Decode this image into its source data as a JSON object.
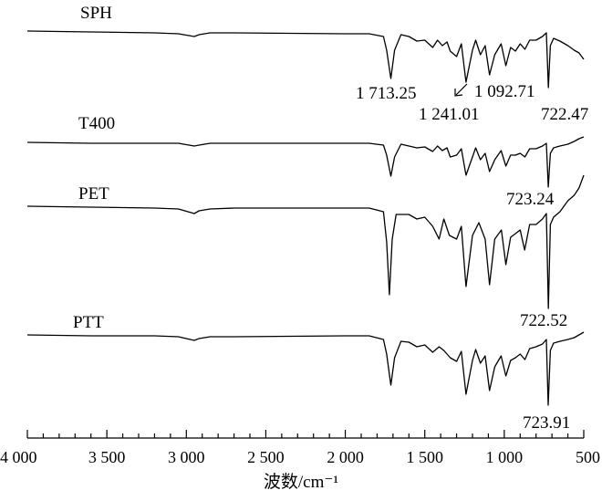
{
  "chart_data": {
    "type": "line",
    "xlabel": "波数/cm⁻¹",
    "xlim": [
      4000,
      500
    ],
    "x_reversed": true,
    "ticks": [
      {
        "value": 4000,
        "label": "4 000"
      },
      {
        "value": 3500,
        "label": "3 500"
      },
      {
        "value": 3000,
        "label": "3 000"
      },
      {
        "value": 2500,
        "label": "2 500"
      },
      {
        "value": 2000,
        "label": "2 000"
      },
      {
        "value": 1500,
        "label": "1 500"
      },
      {
        "value": 1000,
        "label": "1 000"
      },
      {
        "value": 500,
        "label": "500"
      }
    ],
    "series": [
      {
        "name": "SPH",
        "points": [
          [
            4000,
            34
          ],
          [
            3600,
            35
          ],
          [
            3200,
            36
          ],
          [
            3050,
            37
          ],
          [
            2950,
            40
          ],
          [
            2920,
            38
          ],
          [
            2850,
            36
          ],
          [
            2700,
            36
          ],
          [
            2000,
            37
          ],
          [
            1850,
            37
          ],
          [
            1760,
            40
          ],
          [
            1740,
            55
          ],
          [
            1713.25,
            86
          ],
          [
            1690,
            55
          ],
          [
            1650,
            38
          ],
          [
            1600,
            40
          ],
          [
            1550,
            45
          ],
          [
            1500,
            44
          ],
          [
            1450,
            52
          ],
          [
            1420,
            44
          ],
          [
            1390,
            50
          ],
          [
            1360,
            46
          ],
          [
            1340,
            56
          ],
          [
            1300,
            62
          ],
          [
            1270,
            48
          ],
          [
            1241.01,
            90
          ],
          [
            1200,
            55
          ],
          [
            1180,
            44
          ],
          [
            1150,
            60
          ],
          [
            1120,
            50
          ],
          [
            1092.71,
            82
          ],
          [
            1060,
            60
          ],
          [
            1020,
            48
          ],
          [
            990,
            72
          ],
          [
            960,
            52
          ],
          [
            930,
            56
          ],
          [
            900,
            48
          ],
          [
            870,
            54
          ],
          [
            840,
            44
          ],
          [
            800,
            44
          ],
          [
            760,
            40
          ],
          [
            735,
            36
          ],
          [
            722.47,
            96
          ],
          [
            710,
            50
          ],
          [
            690,
            42
          ],
          [
            650,
            45
          ],
          [
            600,
            50
          ],
          [
            560,
            55
          ],
          [
            530,
            58
          ],
          [
            500,
            65
          ]
        ]
      },
      {
        "name": "T400",
        "points": [
          [
            4000,
            156
          ],
          [
            3600,
            157
          ],
          [
            3200,
            157
          ],
          [
            3050,
            157
          ],
          [
            2950,
            160
          ],
          [
            2920,
            159
          ],
          [
            2850,
            157
          ],
          [
            2700,
            157
          ],
          [
            2000,
            157
          ],
          [
            1850,
            157
          ],
          [
            1760,
            159
          ],
          [
            1740,
            170
          ],
          [
            1713.25,
            193
          ],
          [
            1690,
            172
          ],
          [
            1650,
            158
          ],
          [
            1600,
            160
          ],
          [
            1550,
            162
          ],
          [
            1500,
            161
          ],
          [
            1450,
            166
          ],
          [
            1420,
            160
          ],
          [
            1390,
            165
          ],
          [
            1360,
            162
          ],
          [
            1340,
            172
          ],
          [
            1300,
            170
          ],
          [
            1270,
            163
          ],
          [
            1241.01,
            192
          ],
          [
            1200,
            172
          ],
          [
            1180,
            162
          ],
          [
            1150,
            175
          ],
          [
            1120,
            168
          ],
          [
            1092.71,
            188
          ],
          [
            1060,
            175
          ],
          [
            1020,
            165
          ],
          [
            990,
            182
          ],
          [
            960,
            170
          ],
          [
            930,
            170
          ],
          [
            900,
            168
          ],
          [
            870,
            172
          ],
          [
            840,
            163
          ],
          [
            800,
            163
          ],
          [
            760,
            160
          ],
          [
            735,
            157
          ],
          [
            723.24,
            205
          ],
          [
            710,
            168
          ],
          [
            690,
            162
          ],
          [
            650,
            160
          ],
          [
            600,
            158
          ],
          [
            560,
            155
          ],
          [
            530,
            152
          ],
          [
            500,
            150
          ]
        ]
      },
      {
        "name": "PET",
        "points": [
          [
            4000,
            226
          ],
          [
            3600,
            227
          ],
          [
            3200,
            228
          ],
          [
            3050,
            229
          ],
          [
            2950,
            234
          ],
          [
            2920,
            231
          ],
          [
            2850,
            229
          ],
          [
            2700,
            228
          ],
          [
            2000,
            228
          ],
          [
            1850,
            228
          ],
          [
            1760,
            232
          ],
          [
            1740,
            265
          ],
          [
            1722.5,
            323
          ],
          [
            1705,
            262
          ],
          [
            1680,
            235
          ],
          [
            1600,
            235
          ],
          [
            1550,
            240
          ],
          [
            1500,
            238
          ],
          [
            1450,
            248
          ],
          [
            1410,
            262
          ],
          [
            1380,
            240
          ],
          [
            1345,
            258
          ],
          [
            1300,
            262
          ],
          [
            1270,
            248
          ],
          [
            1241.01,
            314
          ],
          [
            1200,
            258
          ],
          [
            1160,
            244
          ],
          [
            1120,
            262
          ],
          [
            1092.71,
            312
          ],
          [
            1060,
            262
          ],
          [
            1018,
            252
          ],
          [
            990,
            290
          ],
          [
            960,
            260
          ],
          [
            930,
            256
          ],
          [
            900,
            252
          ],
          [
            872,
            274
          ],
          [
            840,
            246
          ],
          [
            800,
            246
          ],
          [
            760,
            240
          ],
          [
            735,
            234
          ],
          [
            722.52,
            338
          ],
          [
            710,
            246
          ],
          [
            690,
            238
          ],
          [
            650,
            232
          ],
          [
            600,
            220
          ],
          [
            560,
            214
          ],
          [
            530,
            206
          ],
          [
            500,
            192
          ]
        ]
      },
      {
        "name": "PTT",
        "points": [
          [
            4000,
            367
          ],
          [
            3600,
            368
          ],
          [
            3200,
            368
          ],
          [
            3050,
            369
          ],
          [
            2950,
            373
          ],
          [
            2920,
            371
          ],
          [
            2850,
            369
          ],
          [
            2700,
            369
          ],
          [
            2000,
            368
          ],
          [
            1850,
            368
          ],
          [
            1760,
            372
          ],
          [
            1740,
            388
          ],
          [
            1713.25,
            422
          ],
          [
            1690,
            392
          ],
          [
            1650,
            374
          ],
          [
            1600,
            375
          ],
          [
            1550,
            380
          ],
          [
            1500,
            378
          ],
          [
            1450,
            386
          ],
          [
            1410,
            380
          ],
          [
            1380,
            384
          ],
          [
            1340,
            392
          ],
          [
            1300,
            396
          ],
          [
            1270,
            385
          ],
          [
            1241.01,
            432
          ],
          [
            1200,
            395
          ],
          [
            1180,
            383
          ],
          [
            1150,
            398
          ],
          [
            1120,
            390
          ],
          [
            1092.71,
            428
          ],
          [
            1060,
            402
          ],
          [
            1020,
            390
          ],
          [
            990,
            412
          ],
          [
            960,
            395
          ],
          [
            930,
            392
          ],
          [
            900,
            388
          ],
          [
            870,
            394
          ],
          [
            840,
            382
          ],
          [
            800,
            380
          ],
          [
            760,
            377
          ],
          [
            735,
            372
          ],
          [
            723.91,
            444
          ],
          [
            710,
            384
          ],
          [
            690,
            376
          ],
          [
            650,
            374
          ],
          [
            600,
            372
          ],
          [
            560,
            370
          ],
          [
            530,
            367
          ],
          [
            500,
            364
          ]
        ]
      }
    ],
    "annotations": [
      {
        "text": "1 713.25",
        "series": "SPH"
      },
      {
        "text": "1 241.01",
        "series": "SPH"
      },
      {
        "text": "1 092.71",
        "series": "SPH"
      },
      {
        "text": "722.47",
        "series": "SPH"
      },
      {
        "text": "723.24",
        "series": "T400"
      },
      {
        "text": "722.52",
        "series": "PET"
      },
      {
        "text": "723.91",
        "series": "PTT"
      }
    ]
  }
}
